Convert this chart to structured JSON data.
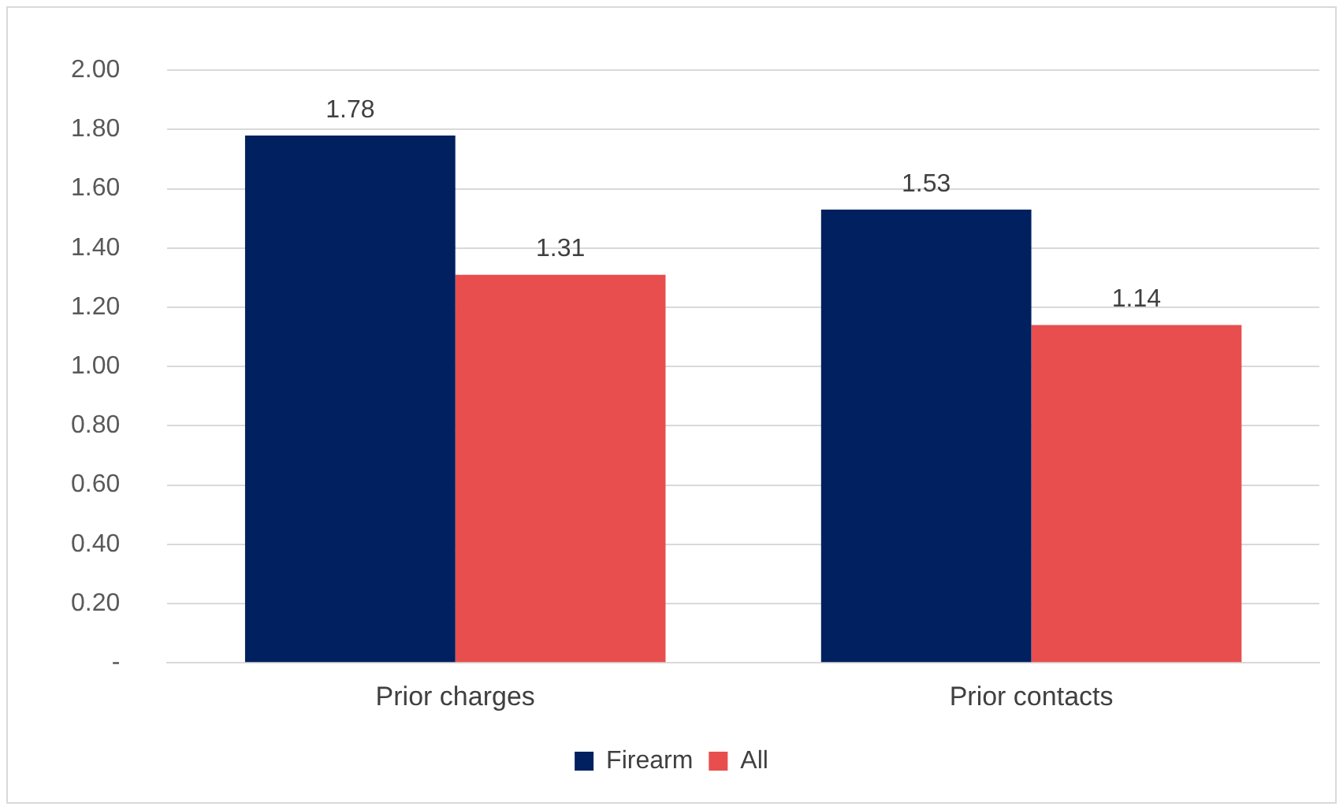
{
  "chart_data": {
    "type": "bar",
    "categories": [
      "Prior charges",
      "Prior contacts"
    ],
    "series": [
      {
        "name": "Firearm",
        "color": "#002060",
        "values": [
          1.78,
          1.53
        ]
      },
      {
        "name": "All",
        "color": "#e84e4e",
        "values": [
          1.31,
          1.14
        ]
      }
    ],
    "ylim": [
      0,
      2
    ],
    "yticks": [
      {
        "value": 0,
        "label": "-"
      },
      {
        "value": 0.2,
        "label": "0.20"
      },
      {
        "value": 0.4,
        "label": "0.40"
      },
      {
        "value": 0.6,
        "label": "0.60"
      },
      {
        "value": 0.8,
        "label": "0.80"
      },
      {
        "value": 1,
        "label": "1.00"
      },
      {
        "value": 1.2,
        "label": "1.20"
      },
      {
        "value": 1.4,
        "label": "1.40"
      },
      {
        "value": 1.6,
        "label": "1.60"
      },
      {
        "value": 1.8,
        "label": "1.80"
      },
      {
        "value": 2,
        "label": "2.00"
      }
    ],
    "grid": "y",
    "legend": "bottom",
    "data_labels": true
  }
}
